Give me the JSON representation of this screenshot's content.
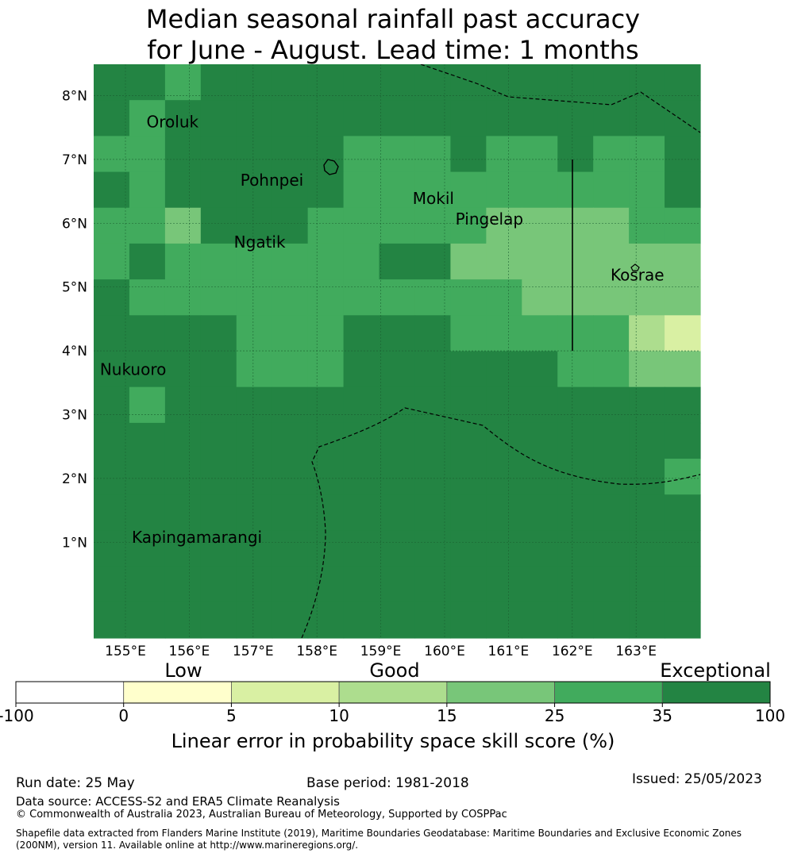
{
  "title_line1": "Median seasonal rainfall past accuracy",
  "title_line2": "for June - August. Lead time: 1 months",
  "map": {
    "lat_ticks": [
      "8°N",
      "7°N",
      "6°N",
      "5°N",
      "4°N",
      "3°N",
      "2°N",
      "1°N"
    ],
    "lon_ticks": [
      "155°E",
      "156°E",
      "157°E",
      "158°E",
      "159°E",
      "160°E",
      "161°E",
      "162°E",
      "163°E"
    ],
    "places": [
      "Oroluk",
      "Pohnpei",
      "Mokil",
      "Pingelap",
      "Ngatik",
      "Kosrae",
      "Nukuoro",
      "Kapingamarangi"
    ],
    "colors": {
      "exceptional": "#238443",
      "very_good": "#41ab5d",
      "good": "#78c679",
      "fair": "#addd8e",
      "low": "#d9f0a3",
      "very_low": "#ffffcc",
      "none": "#ffffff"
    },
    "grid": [
      [
        0,
        0,
        1,
        0,
        0,
        0,
        0,
        0,
        0,
        0,
        0,
        0,
        0,
        0,
        0,
        0,
        0
      ],
      [
        0,
        1,
        0,
        0,
        0,
        0,
        0,
        0,
        0,
        0,
        0,
        0,
        0,
        0,
        0,
        0,
        0
      ],
      [
        1,
        1,
        0,
        0,
        0,
        0,
        0,
        1,
        1,
        1,
        0,
        1,
        1,
        0,
        1,
        1,
        0
      ],
      [
        0,
        1,
        0,
        0,
        0,
        0,
        0,
        1,
        1,
        1,
        1,
        1,
        1,
        1,
        1,
        1,
        0
      ],
      [
        1,
        1,
        2,
        0,
        0,
        0,
        1,
        1,
        1,
        1,
        1,
        2,
        2,
        2,
        2,
        1,
        1
      ],
      [
        1,
        0,
        1,
        1,
        1,
        1,
        1,
        1,
        0,
        0,
        2,
        2,
        2,
        2,
        2,
        2,
        2
      ],
      [
        0,
        1,
        1,
        1,
        1,
        1,
        1,
        1,
        1,
        1,
        1,
        1,
        2,
        2,
        2,
        2,
        2
      ],
      [
        0,
        0,
        0,
        0,
        1,
        1,
        1,
        0,
        0,
        0,
        1,
        1,
        1,
        1,
        1,
        3,
        4
      ],
      [
        0,
        0,
        0,
        0,
        1,
        1,
        1,
        0,
        0,
        0,
        0,
        0,
        0,
        1,
        1,
        2,
        2
      ],
      [
        0,
        1,
        0,
        0,
        0,
        0,
        0,
        0,
        0,
        0,
        0,
        0,
        0,
        0,
        0,
        0,
        0
      ],
      [
        0,
        0,
        0,
        0,
        0,
        0,
        0,
        0,
        0,
        0,
        0,
        0,
        0,
        0,
        0,
        0,
        0
      ],
      [
        0,
        0,
        0,
        0,
        0,
        0,
        0,
        0,
        0,
        0,
        0,
        0,
        0,
        0,
        0,
        0,
        1
      ],
      [
        0,
        0,
        0,
        0,
        0,
        0,
        0,
        0,
        0,
        0,
        0,
        0,
        0,
        0,
        0,
        0,
        0
      ],
      [
        0,
        0,
        0,
        0,
        0,
        0,
        0,
        0,
        0,
        0,
        0,
        0,
        0,
        0,
        0,
        0,
        0
      ],
      [
        0,
        0,
        0,
        0,
        0,
        0,
        0,
        0,
        0,
        0,
        0,
        0,
        0,
        0,
        0,
        0,
        0
      ],
      [
        0,
        0,
        0,
        0,
        0,
        0,
        0,
        0,
        0,
        0,
        0,
        0,
        0,
        0,
        0,
        0,
        0
      ]
    ]
  },
  "colorbar": {
    "category_labels": [
      "Low",
      "Good",
      "Exceptional"
    ],
    "tick_labels": [
      "-100",
      "0",
      "5",
      "10",
      "15",
      "25",
      "35",
      "100"
    ],
    "segment_colors": [
      "#ffffff",
      "#ffffcc",
      "#d9f0a3",
      "#addd8e",
      "#78c679",
      "#41ab5d",
      "#238443"
    ],
    "axis_label": "Linear error in probability space skill score (%)"
  },
  "footer": {
    "run_date": "Run date: 25 May",
    "base_period": "Base period: 1981-2018",
    "issued": "Issued: 25/05/2023",
    "data_source": "Data source: ACCESS-S2 and ERA5 Climate Reanalysis",
    "copyright": "© Commonwealth of Australia 2023, Australian Bureau of Meteorology, Supported by COSPPac",
    "shapefile_note": "Shapefile data extracted from Flanders Marine Institute (2019), Maritime Boundaries Geodatabase: Maritime Boundaries and Exclusive Economic Zones (200NM), version 11. Available online at http://www.marineregions.org/."
  }
}
